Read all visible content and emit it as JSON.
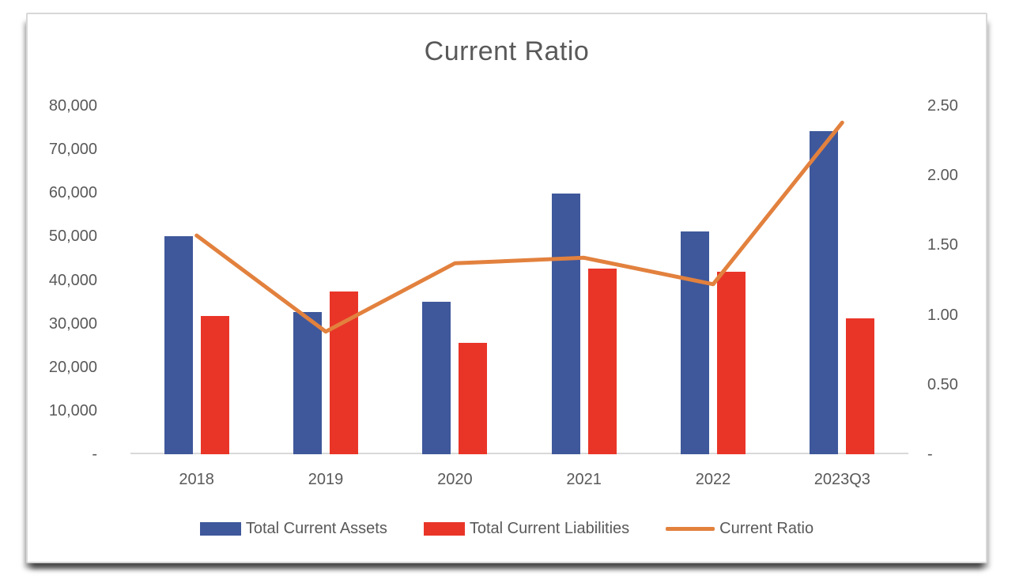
{
  "card": {
    "background": "#FFFFFF",
    "border_color": "#D8D8D8"
  },
  "chart_data": {
    "type": "combo (bar + line)",
    "title": "Current Ratio",
    "title_color": "#595959",
    "text_color": "#595959",
    "axis_line_color": "#D9D9D9",
    "grid": "off",
    "legend_position": "bottom",
    "categories": [
      "2018",
      "2019",
      "2020",
      "2021",
      "2022",
      "2023Q3"
    ],
    "series": [
      {
        "name": "Total Current Assets",
        "type": "bar",
        "axis": "left",
        "color": "#3F589B",
        "values": [
          50000,
          32700,
          35100,
          59900,
          51200,
          74200
        ]
      },
      {
        "name": "Total Current Liabilities",
        "type": "bar",
        "axis": "left",
        "color": "#E93528",
        "values": [
          31800,
          37300,
          25600,
          42600,
          41900,
          31200
        ]
      },
      {
        "name": "Current Ratio",
        "type": "line",
        "axis": "right",
        "color": "#E2813E",
        "values": [
          1.57,
          0.88,
          1.37,
          1.41,
          1.22,
          2.38
        ]
      }
    ],
    "left_axis": {
      "min": 0,
      "max": 80000,
      "ticks": [
        {
          "label": "80,000",
          "value": 80000
        },
        {
          "label": "70,000",
          "value": 70000
        },
        {
          "label": "60,000",
          "value": 60000
        },
        {
          "label": "50,000",
          "value": 50000
        },
        {
          "label": "40,000",
          "value": 40000
        },
        {
          "label": "30,000",
          "value": 30000
        },
        {
          "label": "20,000",
          "value": 20000
        },
        {
          "label": "10,000",
          "value": 10000
        },
        {
          "label": "-",
          "value": 0
        }
      ]
    },
    "right_axis": {
      "min": 0,
      "max": 2.5,
      "ticks": [
        {
          "label": "2.50",
          "value": 2.5
        },
        {
          "label": "2.00",
          "value": 2.0
        },
        {
          "label": "1.50",
          "value": 1.5
        },
        {
          "label": "1.00",
          "value": 1.0
        },
        {
          "label": "0.50",
          "value": 0.5
        },
        {
          "label": "-",
          "value": 0
        }
      ]
    }
  }
}
